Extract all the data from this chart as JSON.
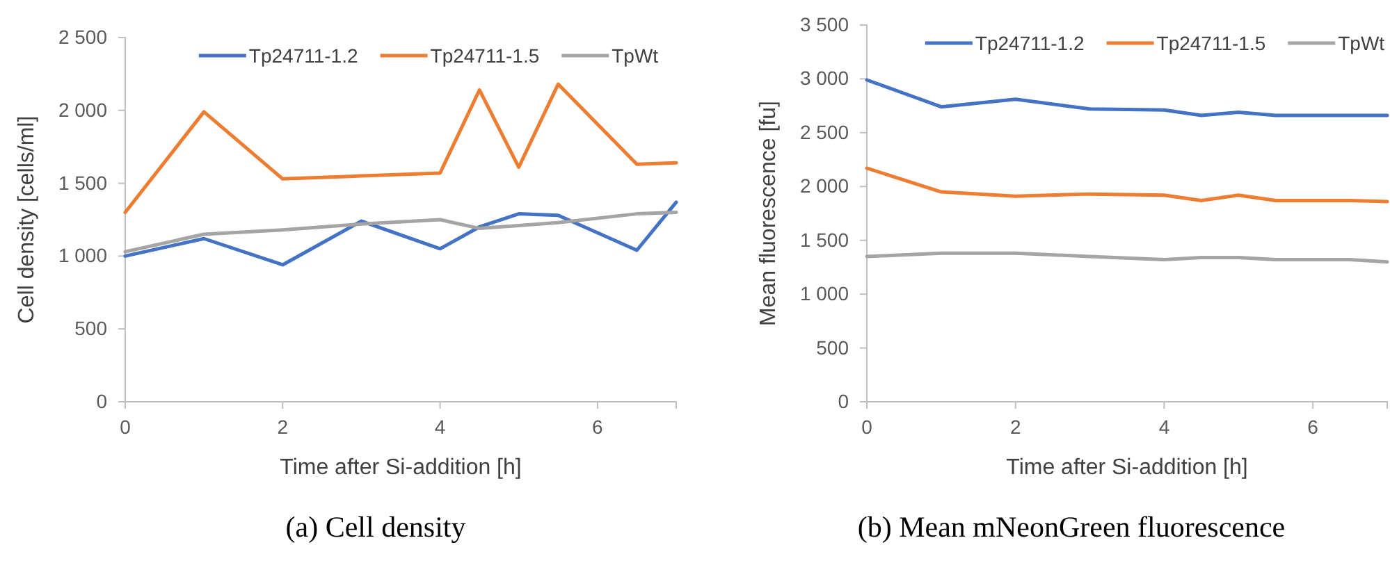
{
  "chart_data": [
    {
      "type": "line",
      "xlabel": "Time after Si-addition [h]",
      "ylabel": "Cell density [cells/ml]",
      "annotations": [
        "(a) Cell density"
      ],
      "x": [
        0,
        1,
        2,
        3,
        4,
        4.5,
        5,
        5.5,
        6.5,
        7
      ],
      "xlim": [
        0,
        7
      ],
      "xticks": [
        0,
        2,
        4,
        6
      ],
      "ylim": [
        0,
        2500
      ],
      "yticks": [
        {
          "value": 0,
          "label": "0"
        },
        {
          "value": 500,
          "label": "500"
        },
        {
          "value": 1000,
          "label": "1 000"
        },
        {
          "value": 1500,
          "label": "1 500"
        },
        {
          "value": 2000,
          "label": "2 000"
        },
        {
          "value": 2500,
          "label": "2 500"
        }
      ],
      "grid": false,
      "legend": "top",
      "marker": "none",
      "line_style": "solid",
      "series": [
        {
          "name": "Tp24711-1.2",
          "color": "#4472c4",
          "values": [
            1000,
            1120,
            940,
            1240,
            1050,
            1200,
            1290,
            1280,
            1040,
            1370
          ]
        },
        {
          "name": "Tp24711-1.5",
          "color": "#ed7d31",
          "values": [
            1300,
            1990,
            1530,
            1550,
            1570,
            2140,
            1610,
            2180,
            1630,
            1640
          ]
        },
        {
          "name": "TpWt",
          "color": "#a5a5a5",
          "values": [
            1030,
            1150,
            1180,
            1220,
            1250,
            1190,
            1210,
            1230,
            1290,
            1300
          ]
        }
      ]
    },
    {
      "type": "line",
      "xlabel": "Time after Si-addition [h]",
      "ylabel": "Mean fluorescence [fu]",
      "annotations": [
        "(b) Mean mNeonGreen fluorescence"
      ],
      "x": [
        0,
        1,
        2,
        3,
        4,
        4.5,
        5,
        5.5,
        6.5,
        7
      ],
      "xlim": [
        0,
        7
      ],
      "xticks": [
        0,
        2,
        4,
        6
      ],
      "ylim": [
        0,
        3500
      ],
      "yticks": [
        {
          "value": 0,
          "label": "0"
        },
        {
          "value": 500,
          "label": "500"
        },
        {
          "value": 1000,
          "label": "1 000"
        },
        {
          "value": 1500,
          "label": "1 500"
        },
        {
          "value": 2000,
          "label": "2 000"
        },
        {
          "value": 2500,
          "label": "2 500"
        },
        {
          "value": 3000,
          "label": "3 000"
        },
        {
          "value": 3500,
          "label": "3 500"
        }
      ],
      "grid": false,
      "legend": "top",
      "marker": "none",
      "line_style": "solid",
      "series": [
        {
          "name": "Tp24711-1.2",
          "color": "#4472c4",
          "values": [
            2990,
            2740,
            2810,
            2720,
            2710,
            2660,
            2690,
            2660,
            2660,
            2660
          ]
        },
        {
          "name": "Tp24711-1.5",
          "color": "#ed7d31",
          "values": [
            2170,
            1950,
            1910,
            1930,
            1920,
            1870,
            1920,
            1870,
            1870,
            1860
          ]
        },
        {
          "name": "TpWt",
          "color": "#a5a5a5",
          "values": [
            1350,
            1380,
            1380,
            1350,
            1320,
            1340,
            1340,
            1320,
            1320,
            1300
          ]
        }
      ]
    }
  ]
}
